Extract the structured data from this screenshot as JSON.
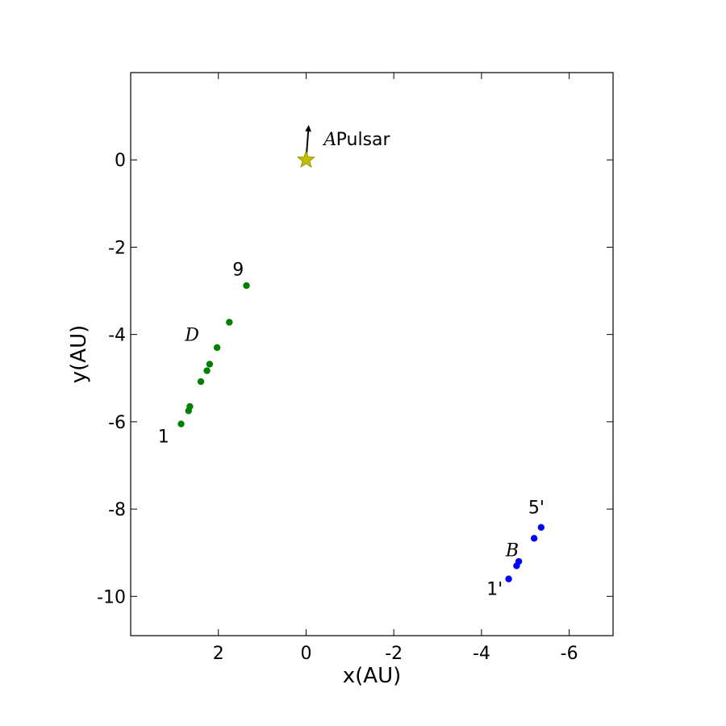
{
  "chart_data": {
    "type": "scatter",
    "xlabel": "x(AU)",
    "ylabel": "y(AU)",
    "xlim": [
      4,
      -7
    ],
    "ylim": [
      -10.9,
      2.0
    ],
    "x_axis_inverted": true,
    "x_ticks": [
      2,
      0,
      -2,
      -4,
      -6
    ],
    "y_ticks": [
      0,
      -2,
      -4,
      -6,
      -8,
      -10
    ],
    "grid": false,
    "series": [
      {
        "color": "#008000",
        "marker": "circle",
        "points": [
          {
            "x": 2.85,
            "y": -6.05
          },
          {
            "x": 2.68,
            "y": -5.75
          },
          {
            "x": 2.65,
            "y": -5.65
          },
          {
            "x": 2.4,
            "y": -5.08
          },
          {
            "x": 2.26,
            "y": -4.83
          },
          {
            "x": 2.2,
            "y": -4.68
          },
          {
            "x": 2.03,
            "y": -4.3
          },
          {
            "x": 1.75,
            "y": -3.72
          },
          {
            "x": 1.36,
            "y": -2.88
          }
        ]
      },
      {
        "color": "#0000ff",
        "marker": "circle",
        "points": [
          {
            "x": -4.62,
            "y": -9.6
          },
          {
            "x": -4.8,
            "y": -9.3
          },
          {
            "x": -4.85,
            "y": -9.2
          },
          {
            "x": -5.2,
            "y": -8.67
          },
          {
            "x": -5.36,
            "y": -8.42
          }
        ]
      }
    ],
    "pulsar": {
      "x": 0.0,
      "y": 0.0,
      "marker": "star",
      "color": "#bfbf00",
      "velocity_arrow_tip": {
        "x": -0.06,
        "y": 0.8
      }
    },
    "annotations": [
      {
        "text": "1",
        "x": 3.25,
        "y": -6.33
      },
      {
        "text": "9",
        "x": 1.55,
        "y": -2.5
      },
      {
        "text": "D",
        "x": 2.6,
        "y": -4.0,
        "italic": true
      },
      {
        "text": "A",
        "x": -0.55,
        "y": 0.48,
        "italic": true
      },
      {
        "text": "Pulsar",
        "x": -1.3,
        "y": 0.48
      },
      {
        "text": "5'",
        "x": -5.25,
        "y": -7.95
      },
      {
        "text": "B",
        "x": -4.7,
        "y": -8.93,
        "italic": true
      },
      {
        "text": "1'",
        "x": -4.3,
        "y": -9.82
      }
    ]
  }
}
